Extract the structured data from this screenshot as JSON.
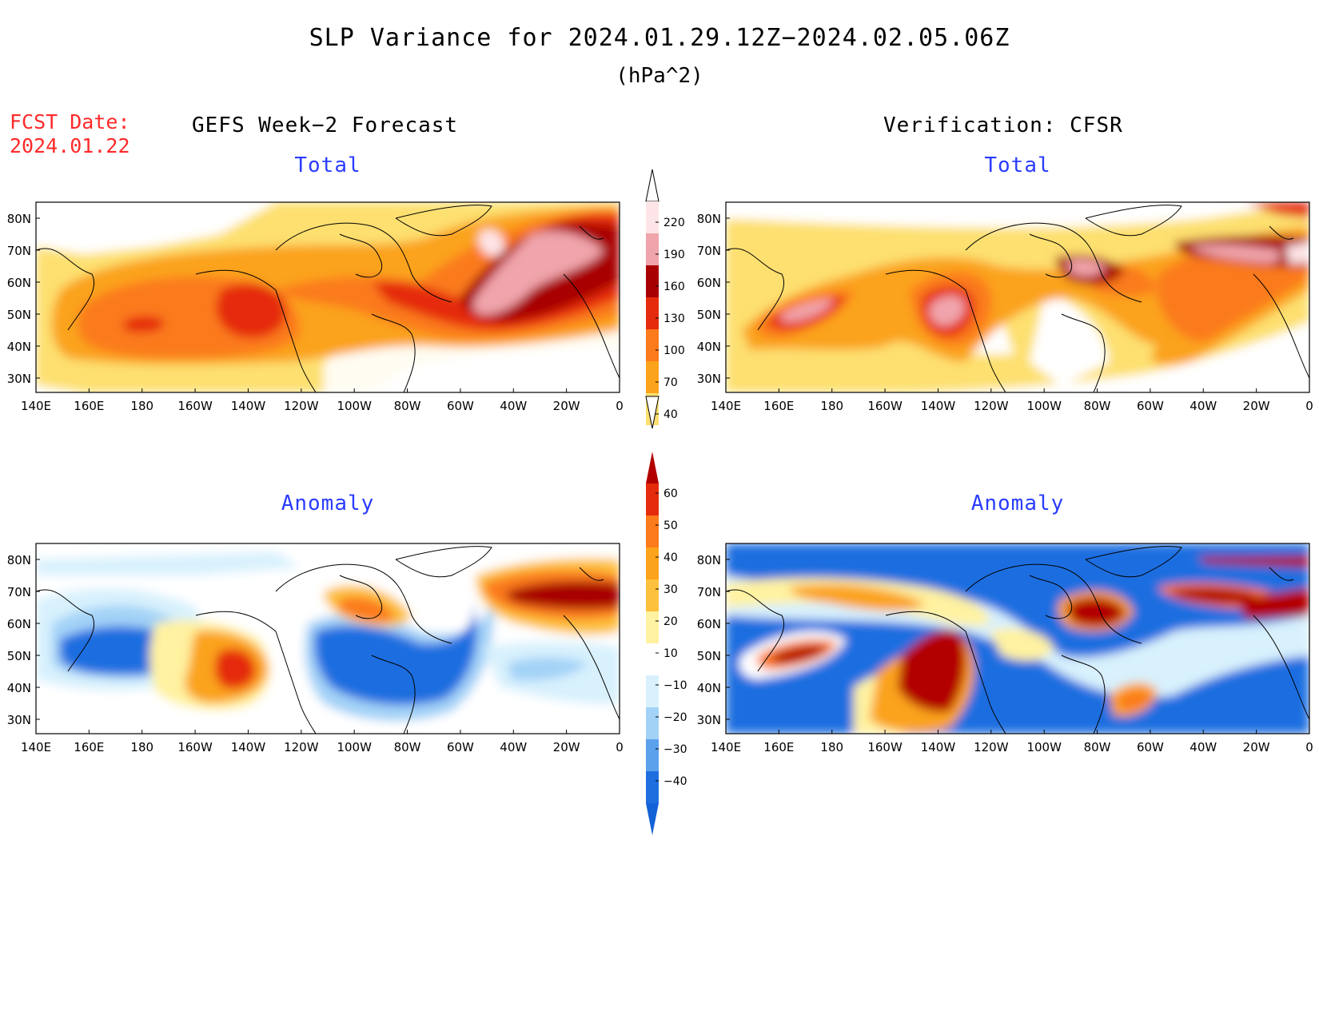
{
  "title": "SLP Variance for 2024.01.29.12Z−2024.02.05.06Z",
  "units": "(hPa^2)",
  "fcst_label": "FCST Date:",
  "fcst_date": "2024.01.22",
  "left_header": "GEFS Week−2 Forecast",
  "right_header": "Verification: CFSR",
  "panels": {
    "tl": {
      "title": "Total"
    },
    "tr": {
      "title": "Total"
    },
    "bl": {
      "title": "Anomaly"
    },
    "br": {
      "title": "Anomaly"
    }
  },
  "lat_labels": [
    "80N",
    "70N",
    "60N",
    "50N",
    "40N",
    "30N"
  ],
  "lon_labels": [
    "140E",
    "160E",
    "180",
    "160W",
    "140W",
    "120W",
    "100W",
    "80W",
    "60W",
    "40W",
    "20W",
    "0"
  ],
  "colorbar_total": {
    "labels": [
      "220",
      "190",
      "160",
      "130",
      "100",
      "70",
      "40"
    ],
    "colors": [
      "#fde4e6",
      "#f0a4ab",
      "#a80000",
      "#e52b0b",
      "#fb7a1b",
      "#fba31a",
      "#fde070"
    ]
  },
  "colorbar_anomaly": {
    "labels": [
      "60",
      "50",
      "40",
      "30",
      "20",
      "10",
      "−10",
      "−20",
      "−30",
      "−40"
    ],
    "colors": [
      "#b20000",
      "#e52b0b",
      "#fb7a1b",
      "#fba31a",
      "#fdc13d",
      "#fff2a0",
      "#ffffff",
      "#d8f1fd",
      "#a3d2f7",
      "#5ba1ec",
      "#1f6ee0",
      "#1361d7"
    ]
  },
  "colors": {
    "total": {
      "c40": "#fde070",
      "c70": "#fba31a",
      "c100": "#fb7a1b",
      "c130": "#e52b0b",
      "c160": "#a80000",
      "c190": "#f0a4ab",
      "c220": "#fde4e6"
    },
    "anomaly": {
      "p10": "#fff2a0",
      "p20": "#fdc13d",
      "p30": "#fba31a",
      "p40": "#fb7a1b",
      "p50": "#e52b0b",
      "p60": "#b20000",
      "n10": "#d8f1fd",
      "n20": "#a3d2f7",
      "n30": "#5ba1ec",
      "n40": "#1f6ee0"
    }
  }
}
